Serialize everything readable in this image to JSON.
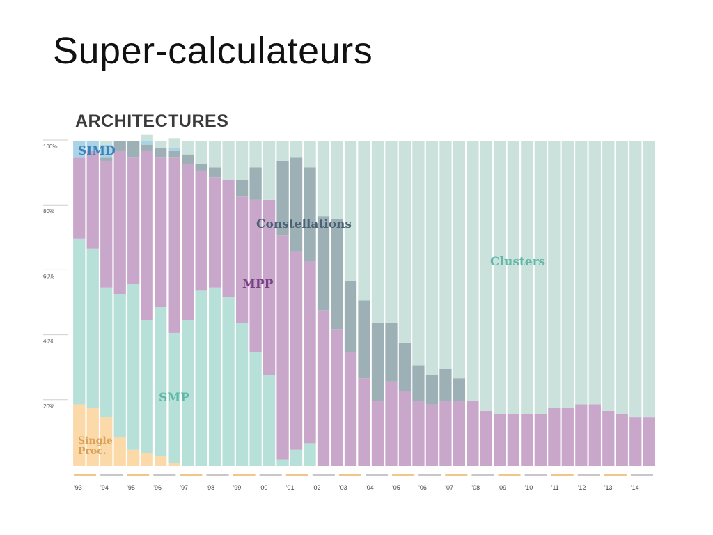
{
  "slide": {
    "title": "Super-calculateurs"
  },
  "chart_data": {
    "type": "stacked-bar-100",
    "title": "ARCHITECTURES",
    "xlabel": "",
    "ylabel": "",
    "ylim": [
      0,
      100
    ],
    "y_ticks": [
      {
        "value": 100,
        "label": "100%"
      },
      {
        "value": 80,
        "label": "80%"
      },
      {
        "value": 60,
        "label": "60%"
      },
      {
        "value": 40,
        "label": "40%"
      },
      {
        "value": 20,
        "label": "20%"
      }
    ],
    "x_tick_labels": [
      "'93",
      "'94",
      "'95",
      "'96",
      "'97",
      "'98",
      "'99",
      "'00",
      "'01",
      "'02",
      "'03",
      "'04",
      "'05",
      "'06",
      "'07",
      "'08",
      "'09",
      "'10",
      "'11",
      "'12",
      "'13",
      "'14"
    ],
    "bar_count": 43,
    "series": [
      {
        "name": "Single Proc.",
        "label": "Single\nProc.",
        "color": "#fbd9a8",
        "label_color": "#d9a25a",
        "values": [
          19,
          18,
          15,
          9,
          5,
          4,
          3,
          1,
          0,
          0,
          0,
          0,
          0,
          0,
          0,
          0,
          0,
          0,
          0,
          0,
          0,
          0,
          0,
          0,
          0,
          0,
          0,
          0,
          0,
          0,
          0,
          0,
          0,
          0,
          0,
          0,
          0,
          0,
          0,
          0,
          0,
          0,
          0
        ]
      },
      {
        "name": "SMP",
        "label": "SMP",
        "color": "#b7e0d8",
        "label_color": "#5fb7a8",
        "values": [
          51,
          49,
          40,
          44,
          51,
          41,
          46,
          40,
          45,
          54,
          55,
          52,
          44,
          35,
          28,
          2,
          5,
          7,
          0,
          0,
          0,
          0,
          0,
          0,
          0,
          0,
          0,
          0,
          0,
          0,
          0,
          0,
          0,
          0,
          0,
          0,
          0,
          0,
          0,
          0,
          0,
          0,
          0
        ]
      },
      {
        "name": "MPP",
        "label": "MPP",
        "color": "#c9a7cb",
        "label_color": "#7a3f86",
        "values": [
          25,
          30,
          39,
          44,
          39,
          52,
          46,
          54,
          48,
          37,
          34,
          36,
          39,
          47,
          54,
          69,
          61,
          56,
          48,
          42,
          35,
          27,
          20,
          26,
          23,
          20,
          19,
          20,
          20,
          20,
          17,
          16,
          16,
          16,
          16,
          18,
          18,
          19,
          19,
          17,
          16,
          15,
          15
        ]
      },
      {
        "name": "Constellations",
        "label": "Constellations",
        "color": "#9db0b5",
        "label_color": "#4b6275",
        "values": [
          0,
          0,
          1,
          3,
          5,
          2,
          3,
          2,
          3,
          2,
          3,
          0,
          5,
          10,
          0,
          23,
          29,
          29,
          29,
          34,
          22,
          24,
          24,
          18,
          15,
          11,
          9,
          10,
          7,
          0,
          0,
          0,
          0,
          0,
          0,
          0,
          0,
          0,
          0,
          0,
          0,
          0,
          0
        ]
      },
      {
        "name": "SIMD",
        "label": "SIMD",
        "color": "#a9d3e7",
        "label_color": "#3c82b8",
        "values": [
          5,
          3,
          4,
          0,
          0,
          1,
          0,
          1,
          0,
          0,
          0,
          0,
          0,
          0,
          0,
          0,
          0,
          0,
          0,
          0,
          0,
          0,
          0,
          0,
          0,
          0,
          0,
          0,
          0,
          0,
          0,
          0,
          0,
          0,
          0,
          0,
          0,
          0,
          0,
          0,
          0,
          0,
          0
        ]
      },
      {
        "name": "Clusters",
        "label": "Clusters",
        "color": "#cbe1dc",
        "label_color": "#5fb7a8",
        "values": [
          0,
          0,
          1,
          0,
          0,
          2,
          2,
          3,
          4,
          7,
          8,
          12,
          12,
          8,
          18,
          6,
          5,
          8,
          23,
          24,
          43,
          49,
          56,
          56,
          62,
          69,
          72,
          70,
          73,
          80,
          83,
          84,
          84,
          84,
          84,
          82,
          82,
          81,
          81,
          83,
          84,
          85,
          85
        ]
      }
    ]
  }
}
